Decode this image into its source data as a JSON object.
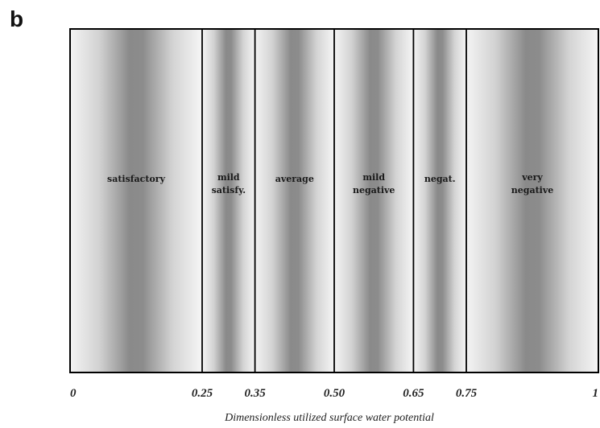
{
  "panel_label": "b",
  "chart_data": {
    "type": "band-diagram",
    "xlabel": "Dimensionless utilized surface water potential",
    "xlim": [
      0,
      1
    ],
    "ticks": [
      {
        "value": 0,
        "label": "0"
      },
      {
        "value": 0.25,
        "label": "0.25"
      },
      {
        "value": 0.35,
        "label": "0.35"
      },
      {
        "value": 0.5,
        "label": "0.50"
      },
      {
        "value": 0.65,
        "label": "0.65"
      },
      {
        "value": 0.75,
        "label": "0.75"
      },
      {
        "value": 1,
        "label": "1"
      }
    ],
    "bands": [
      {
        "from": 0,
        "to": 0.25,
        "lines": [
          "satisfactory"
        ]
      },
      {
        "from": 0.25,
        "to": 0.35,
        "lines": [
          "mild",
          "satisfy."
        ]
      },
      {
        "from": 0.35,
        "to": 0.5,
        "lines": [
          "average"
        ]
      },
      {
        "from": 0.5,
        "to": 0.65,
        "lines": [
          "mild",
          "negative"
        ]
      },
      {
        "from": 0.65,
        "to": 0.75,
        "lines": [
          "negat."
        ]
      },
      {
        "from": 0.75,
        "to": 1,
        "lines": [
          "very",
          "negative"
        ]
      }
    ]
  }
}
